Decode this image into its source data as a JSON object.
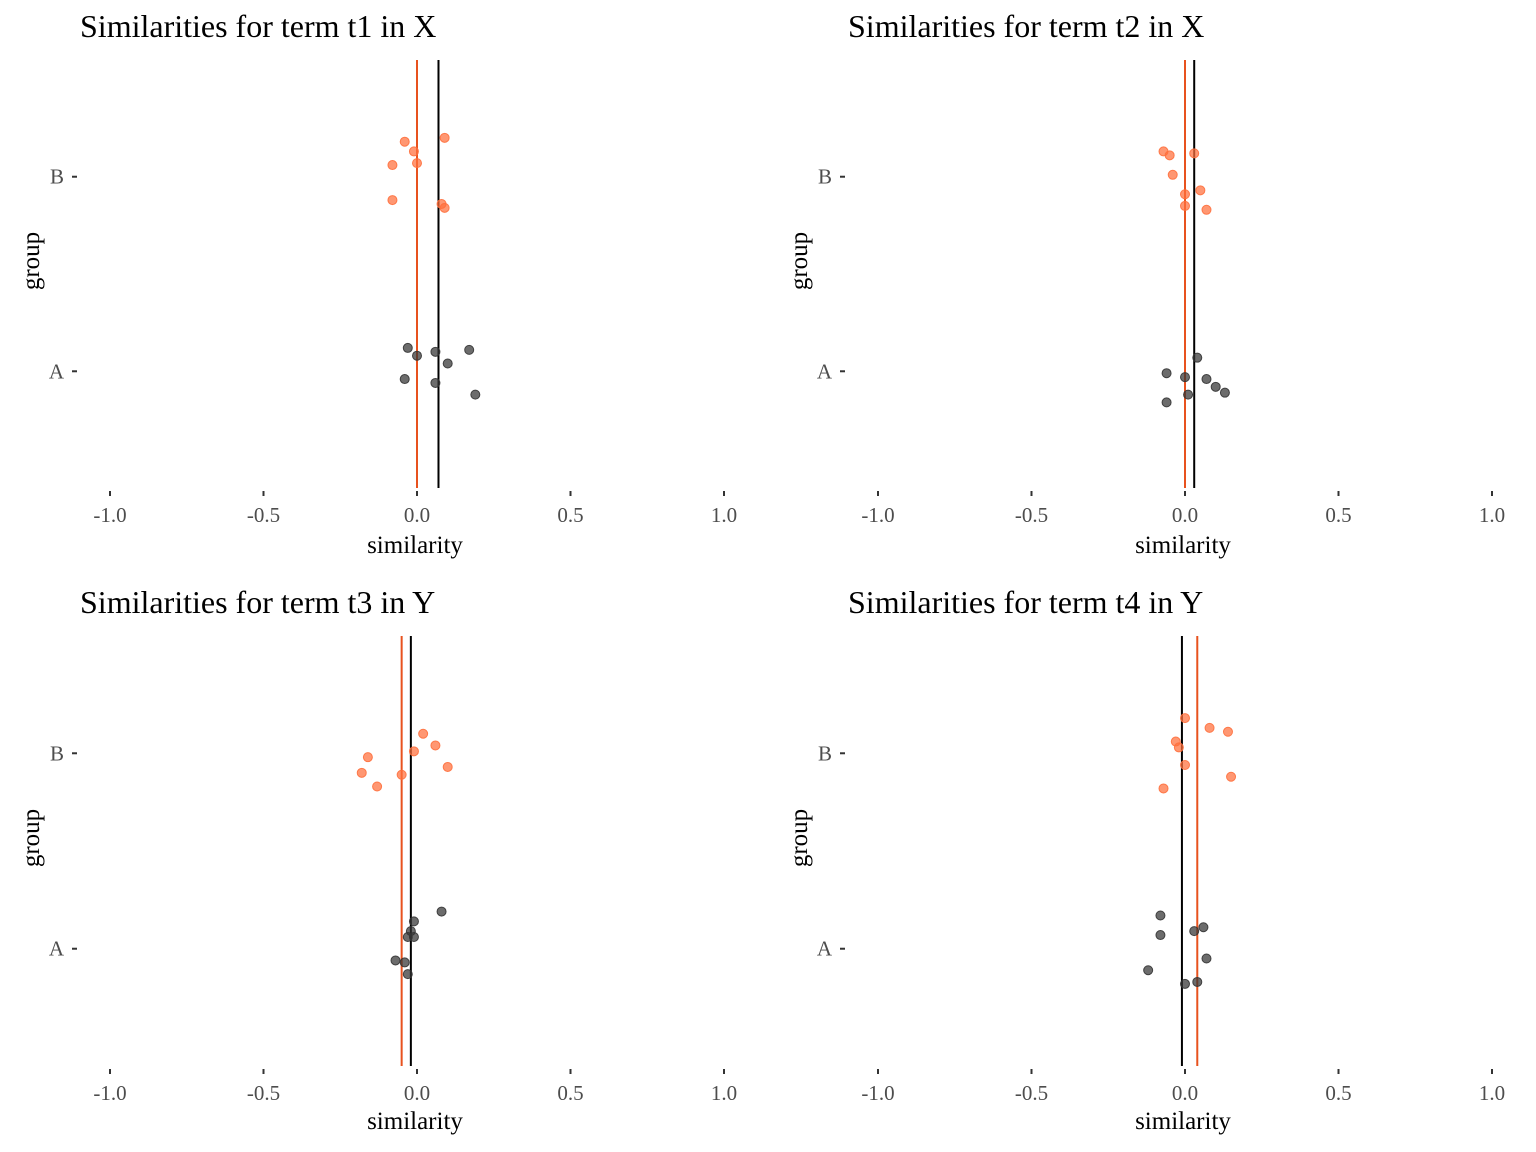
{
  "figure": {
    "background": "#ffffff",
    "tick_color": "#333333"
  },
  "chart_data": [
    {
      "type": "scatter",
      "title": "Similarities for term t1 in X",
      "xlabel": "similarity",
      "ylabel": "group",
      "xlim": [
        -1.0,
        1.0
      ],
      "xticks": [
        "-1.0",
        "-0.5",
        "0.0",
        "0.5",
        "1.0"
      ],
      "categories": [
        "A",
        "B"
      ],
      "grid": false,
      "series": [
        {
          "group": "A",
          "color": "#333333",
          "mean_line_color": "#000000",
          "mean": 0.07,
          "points": [
            [
              -0.03,
              0.12
            ],
            [
              -0.04,
              -0.04
            ],
            [
              0.0,
              0.08
            ],
            [
              0.06,
              0.1
            ],
            [
              0.06,
              -0.06
            ],
            [
              0.1,
              0.04
            ],
            [
              0.17,
              0.11
            ],
            [
              0.19,
              -0.12
            ]
          ]
        },
        {
          "group": "B",
          "color": "#ff6f3c",
          "mean_line_color": "#e8521e",
          "mean": 0.0,
          "points": [
            [
              -0.04,
              0.18
            ],
            [
              -0.01,
              0.13
            ],
            [
              -0.08,
              0.06
            ],
            [
              0.0,
              0.07
            ],
            [
              0.09,
              0.2
            ],
            [
              -0.08,
              -0.12
            ],
            [
              0.08,
              -0.14
            ],
            [
              0.09,
              -0.16
            ]
          ]
        }
      ]
    },
    {
      "type": "scatter",
      "title": "Similarities for term t2 in X",
      "xlabel": "similarity",
      "ylabel": "group",
      "xlim": [
        -1.0,
        1.0
      ],
      "xticks": [
        "-1.0",
        "-0.5",
        "0.0",
        "0.5",
        "1.0"
      ],
      "categories": [
        "A",
        "B"
      ],
      "grid": false,
      "series": [
        {
          "group": "A",
          "color": "#333333",
          "mean_line_color": "#000000",
          "mean": 0.03,
          "points": [
            [
              0.04,
              0.07
            ],
            [
              -0.06,
              -0.01
            ],
            [
              0.0,
              -0.03
            ],
            [
              0.07,
              -0.04
            ],
            [
              0.1,
              -0.08
            ],
            [
              0.13,
              -0.11
            ],
            [
              0.01,
              -0.12
            ],
            [
              -0.06,
              -0.16
            ]
          ]
        },
        {
          "group": "B",
          "color": "#ff6f3c",
          "mean_line_color": "#e8521e",
          "mean": 0.0,
          "points": [
            [
              -0.07,
              0.13
            ],
            [
              -0.05,
              0.11
            ],
            [
              0.03,
              0.12
            ],
            [
              -0.04,
              0.01
            ],
            [
              0.05,
              -0.07
            ],
            [
              0.0,
              -0.09
            ],
            [
              0.0,
              -0.15
            ],
            [
              0.07,
              -0.17
            ]
          ]
        }
      ]
    },
    {
      "type": "scatter",
      "title": "Similarities for term t3 in Y",
      "xlabel": "similarity",
      "ylabel": "group",
      "xlim": [
        -1.0,
        1.0
      ],
      "xticks": [
        "-1.0",
        "-0.5",
        "0.0",
        "0.5",
        "1.0"
      ],
      "categories": [
        "A",
        "B"
      ],
      "grid": false,
      "series": [
        {
          "group": "A",
          "color": "#333333",
          "mean_line_color": "#000000",
          "mean": -0.02,
          "points": [
            [
              0.08,
              0.19
            ],
            [
              -0.01,
              0.14
            ],
            [
              -0.02,
              0.09
            ],
            [
              -0.03,
              0.06
            ],
            [
              -0.01,
              0.06
            ],
            [
              -0.07,
              -0.06
            ],
            [
              -0.04,
              -0.07
            ],
            [
              -0.03,
              -0.13
            ]
          ]
        },
        {
          "group": "B",
          "color": "#ff6f3c",
          "mean_line_color": "#e8521e",
          "mean": -0.05,
          "points": [
            [
              0.02,
              0.1
            ],
            [
              0.06,
              0.04
            ],
            [
              -0.01,
              0.01
            ],
            [
              -0.16,
              -0.02
            ],
            [
              0.1,
              -0.07
            ],
            [
              -0.18,
              -0.1
            ],
            [
              -0.05,
              -0.11
            ],
            [
              -0.13,
              -0.17
            ]
          ]
        }
      ]
    },
    {
      "type": "scatter",
      "title": "Similarities for term t4 in Y",
      "xlabel": "similarity",
      "ylabel": "group",
      "xlim": [
        -1.0,
        1.0
      ],
      "xticks": [
        "-1.0",
        "-0.5",
        "0.0",
        "0.5",
        "1.0"
      ],
      "categories": [
        "A",
        "B"
      ],
      "grid": false,
      "series": [
        {
          "group": "A",
          "color": "#333333",
          "mean_line_color": "#000000",
          "mean": -0.01,
          "points": [
            [
              -0.08,
              0.17
            ],
            [
              0.06,
              0.11
            ],
            [
              0.03,
              0.09
            ],
            [
              -0.08,
              0.07
            ],
            [
              0.07,
              -0.05
            ],
            [
              -0.12,
              -0.11
            ],
            [
              0.04,
              -0.17
            ],
            [
              0.0,
              -0.18
            ]
          ]
        },
        {
          "group": "B",
          "color": "#ff6f3c",
          "mean_line_color": "#e8521e",
          "mean": 0.04,
          "points": [
            [
              0.0,
              0.18
            ],
            [
              0.08,
              0.13
            ],
            [
              0.14,
              0.11
            ],
            [
              -0.03,
              0.06
            ],
            [
              -0.02,
              0.03
            ],
            [
              0.0,
              -0.06
            ],
            [
              0.15,
              -0.12
            ],
            [
              -0.07,
              -0.18
            ]
          ]
        }
      ]
    }
  ]
}
